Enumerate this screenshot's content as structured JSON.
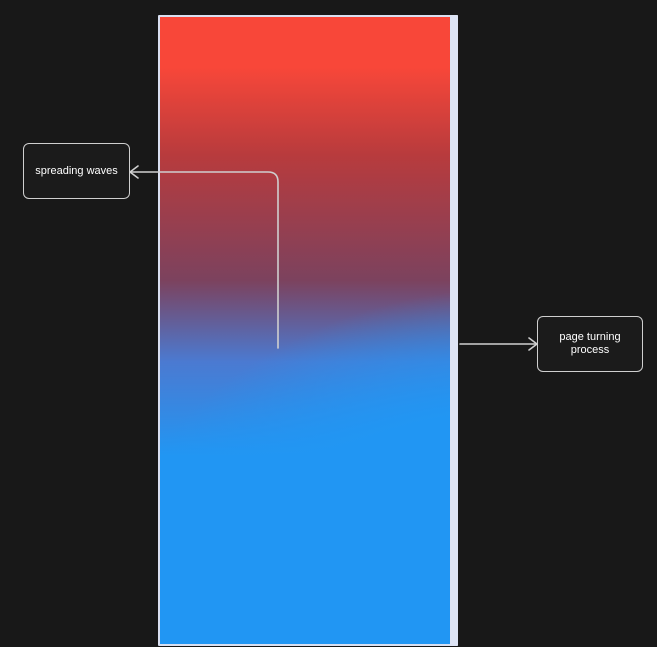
{
  "annotations": {
    "spreading_waves": "spreading waves",
    "page_turning_process": "page turning process"
  },
  "colors": {
    "background": "#181818",
    "red": "#f84739",
    "blue": "#2196f3",
    "page_edge": "#dde3f4",
    "connector": "#cfcfcf"
  }
}
